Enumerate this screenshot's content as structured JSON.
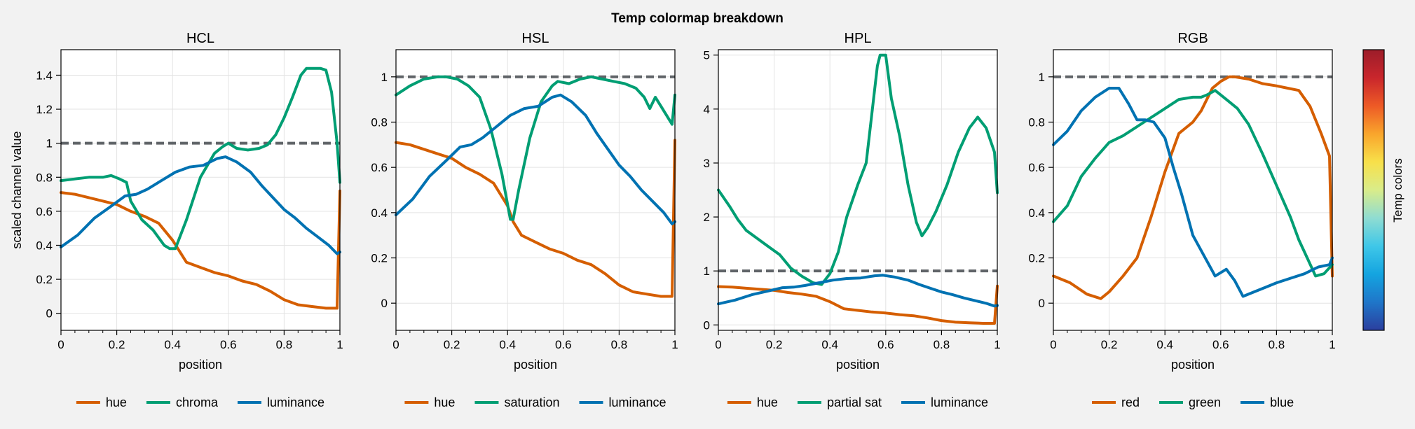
{
  "figure": {
    "suptitle": "Temp colormap breakdown",
    "colorbar_label": "Temp colors",
    "colorbar_stops": [
      "#2b3f9e",
      "#1f76c9",
      "#14a4e0",
      "#3fc7e8",
      "#8fdcd2",
      "#d9ec8a",
      "#f8e04a",
      "#f9a52c",
      "#ed5a26",
      "#c9262c",
      "#9c1d2a"
    ]
  },
  "colors": {
    "hue": "#d55e00",
    "chroma": "#009e73",
    "luminance": "#0072b2",
    "reference": "#606468",
    "background": "#f2f2f2",
    "axes_face": "#ffffff",
    "grid": "#e3e3e3"
  },
  "chart_data": [
    {
      "type": "line",
      "title": "HCL",
      "xlabel": "position",
      "ylabel": "scaled channel value",
      "xlim": [
        0,
        1
      ],
      "ylim": [
        -0.1,
        1.55
      ],
      "xticks": [
        0,
        0.2,
        0.4,
        0.6,
        0.8,
        1
      ],
      "xticklabels": [
        "0",
        "0.2",
        "0.4",
        "0.6",
        "0.8",
        "1"
      ],
      "yticks": [
        0,
        0.2,
        0.4,
        0.6,
        0.8,
        1,
        1.2,
        1.4
      ],
      "yticklabels": [
        "0",
        "0.2",
        "0.4",
        "0.6",
        "0.8",
        "1",
        "1.2",
        "1.4"
      ],
      "grid": true,
      "legend_position": "bottom",
      "reference_line": 1,
      "series": [
        {
          "name": "hue",
          "color": "#d55e00",
          "x": [
            0,
            0.05,
            0.1,
            0.15,
            0.2,
            0.25,
            0.3,
            0.35,
            0.4,
            0.45,
            0.5,
            0.55,
            0.6,
            0.65,
            0.7,
            0.75,
            0.8,
            0.85,
            0.9,
            0.95,
            0.99,
            1.0
          ],
          "y": [
            0.71,
            0.7,
            0.68,
            0.66,
            0.64,
            0.6,
            0.57,
            0.53,
            0.43,
            0.3,
            0.27,
            0.24,
            0.22,
            0.19,
            0.17,
            0.13,
            0.08,
            0.05,
            0.04,
            0.03,
            0.03,
            0.72
          ]
        },
        {
          "name": "chroma",
          "color": "#009e73",
          "x": [
            0,
            0.05,
            0.1,
            0.15,
            0.18,
            0.21,
            0.235,
            0.25,
            0.29,
            0.33,
            0.37,
            0.39,
            0.41,
            0.45,
            0.5,
            0.55,
            0.58,
            0.6,
            0.63,
            0.67,
            0.71,
            0.74,
            0.77,
            0.8,
            0.83,
            0.86,
            0.88,
            0.9,
            0.93,
            0.95,
            0.97,
            0.99,
            1.0
          ],
          "y": [
            0.78,
            0.79,
            0.8,
            0.8,
            0.81,
            0.79,
            0.77,
            0.66,
            0.55,
            0.49,
            0.4,
            0.38,
            0.38,
            0.55,
            0.8,
            0.94,
            0.98,
            1.0,
            0.97,
            0.96,
            0.97,
            0.99,
            1.05,
            1.15,
            1.27,
            1.4,
            1.44,
            1.44,
            1.44,
            1.43,
            1.3,
            1.0,
            0.77
          ]
        },
        {
          "name": "luminance",
          "color": "#0072b2",
          "x": [
            0,
            0.06,
            0.12,
            0.18,
            0.23,
            0.27,
            0.31,
            0.36,
            0.41,
            0.46,
            0.51,
            0.56,
            0.59,
            0.63,
            0.68,
            0.72,
            0.76,
            0.8,
            0.84,
            0.88,
            0.92,
            0.96,
            0.99,
            1.0
          ],
          "y": [
            0.39,
            0.46,
            0.56,
            0.63,
            0.69,
            0.7,
            0.73,
            0.78,
            0.83,
            0.86,
            0.87,
            0.91,
            0.92,
            0.89,
            0.83,
            0.75,
            0.68,
            0.61,
            0.56,
            0.5,
            0.45,
            0.4,
            0.35,
            0.36
          ]
        }
      ]
    },
    {
      "type": "line",
      "title": "HSL",
      "xlabel": "position",
      "ylabel": "",
      "xlim": [
        0,
        1
      ],
      "ylim": [
        -0.12,
        1.12
      ],
      "xticks": [
        0,
        0.2,
        0.4,
        0.6,
        0.8,
        1
      ],
      "xticklabels": [
        "0",
        "0.2",
        "0.4",
        "0.6",
        "0.8",
        "1"
      ],
      "yticks": [
        0,
        0.2,
        0.4,
        0.6,
        0.8,
        1
      ],
      "yticklabels": [
        "0",
        "0.2",
        "0.4",
        "0.6",
        "0.8",
        "1"
      ],
      "grid": true,
      "legend_position": "bottom",
      "reference_line": 1,
      "series": [
        {
          "name": "hue",
          "color": "#d55e00",
          "x": [
            0,
            0.05,
            0.1,
            0.15,
            0.2,
            0.25,
            0.3,
            0.35,
            0.4,
            0.42,
            0.45,
            0.5,
            0.55,
            0.6,
            0.65,
            0.7,
            0.75,
            0.8,
            0.85,
            0.9,
            0.95,
            0.99,
            1.0
          ],
          "y": [
            0.71,
            0.7,
            0.68,
            0.66,
            0.64,
            0.6,
            0.57,
            0.53,
            0.43,
            0.36,
            0.3,
            0.27,
            0.24,
            0.22,
            0.19,
            0.17,
            0.13,
            0.08,
            0.05,
            0.04,
            0.03,
            0.03,
            0.72
          ]
        },
        {
          "name": "saturation",
          "color": "#009e73",
          "x": [
            0,
            0.05,
            0.1,
            0.15,
            0.18,
            0.22,
            0.26,
            0.3,
            0.34,
            0.38,
            0.41,
            0.42,
            0.44,
            0.48,
            0.52,
            0.56,
            0.58,
            0.62,
            0.66,
            0.7,
            0.74,
            0.78,
            0.82,
            0.86,
            0.89,
            0.91,
            0.93,
            0.95,
            0.97,
            0.99,
            1.0
          ],
          "y": [
            0.92,
            0.96,
            0.99,
            1.0,
            1.0,
            0.99,
            0.96,
            0.91,
            0.77,
            0.57,
            0.37,
            0.37,
            0.5,
            0.73,
            0.89,
            0.96,
            0.98,
            0.97,
            0.99,
            1.0,
            0.99,
            0.98,
            0.97,
            0.95,
            0.91,
            0.86,
            0.91,
            0.87,
            0.83,
            0.79,
            0.92
          ]
        },
        {
          "name": "luminance",
          "color": "#0072b2",
          "x": [
            0,
            0.06,
            0.12,
            0.18,
            0.23,
            0.27,
            0.31,
            0.36,
            0.41,
            0.46,
            0.51,
            0.56,
            0.59,
            0.63,
            0.68,
            0.72,
            0.76,
            0.8,
            0.84,
            0.88,
            0.92,
            0.96,
            0.99,
            1.0
          ],
          "y": [
            0.39,
            0.46,
            0.56,
            0.63,
            0.69,
            0.7,
            0.73,
            0.78,
            0.83,
            0.86,
            0.87,
            0.91,
            0.92,
            0.89,
            0.83,
            0.75,
            0.68,
            0.61,
            0.56,
            0.5,
            0.45,
            0.4,
            0.35,
            0.36
          ]
        }
      ]
    },
    {
      "type": "line",
      "title": "HPL",
      "xlabel": "position",
      "ylabel": "",
      "xlim": [
        0,
        1
      ],
      "ylim": [
        -0.1,
        5.1
      ],
      "xticks": [
        0,
        0.2,
        0.4,
        0.6,
        0.8,
        1
      ],
      "xticklabels": [
        "0",
        "0.2",
        "0.4",
        "0.6",
        "0.8",
        "1"
      ],
      "yticks": [
        0,
        1,
        2,
        3,
        4,
        5
      ],
      "yticklabels": [
        "0",
        "1",
        "2",
        "3",
        "4",
        "5"
      ],
      "grid": true,
      "legend_position": "bottom",
      "reference_line": 1,
      "series": [
        {
          "name": "hue",
          "color": "#d55e00",
          "x": [
            0,
            0.05,
            0.1,
            0.15,
            0.2,
            0.25,
            0.3,
            0.35,
            0.4,
            0.45,
            0.5,
            0.55,
            0.6,
            0.65,
            0.7,
            0.75,
            0.8,
            0.85,
            0.9,
            0.95,
            0.99,
            1.0
          ],
          "y": [
            0.71,
            0.7,
            0.68,
            0.66,
            0.64,
            0.6,
            0.57,
            0.53,
            0.43,
            0.3,
            0.27,
            0.24,
            0.22,
            0.19,
            0.17,
            0.13,
            0.08,
            0.05,
            0.04,
            0.03,
            0.03,
            0.72
          ]
        },
        {
          "name": "partial sat",
          "color": "#009e73",
          "x": [
            0,
            0.04,
            0.07,
            0.1,
            0.14,
            0.18,
            0.22,
            0.26,
            0.3,
            0.34,
            0.37,
            0.4,
            0.43,
            0.46,
            0.5,
            0.53,
            0.55,
            0.57,
            0.58,
            0.6,
            0.62,
            0.65,
            0.68,
            0.71,
            0.73,
            0.75,
            0.78,
            0.82,
            0.86,
            0.9,
            0.93,
            0.96,
            0.99,
            1.0
          ],
          "y": [
            2.5,
            2.2,
            1.95,
            1.75,
            1.6,
            1.45,
            1.3,
            1.05,
            0.9,
            0.78,
            0.75,
            0.95,
            1.35,
            2.0,
            2.6,
            3.0,
            3.9,
            4.8,
            5.0,
            5.0,
            4.2,
            3.5,
            2.6,
            1.9,
            1.65,
            1.8,
            2.1,
            2.6,
            3.2,
            3.65,
            3.85,
            3.65,
            3.2,
            2.45
          ]
        },
        {
          "name": "luminance",
          "color": "#0072b2",
          "x": [
            0,
            0.06,
            0.12,
            0.18,
            0.23,
            0.27,
            0.31,
            0.36,
            0.41,
            0.46,
            0.51,
            0.56,
            0.59,
            0.63,
            0.68,
            0.72,
            0.76,
            0.8,
            0.84,
            0.88,
            0.92,
            0.96,
            0.99,
            1.0
          ],
          "y": [
            0.39,
            0.46,
            0.56,
            0.63,
            0.69,
            0.7,
            0.73,
            0.78,
            0.83,
            0.86,
            0.87,
            0.91,
            0.92,
            0.89,
            0.83,
            0.75,
            0.68,
            0.61,
            0.56,
            0.5,
            0.45,
            0.4,
            0.35,
            0.36
          ]
        }
      ]
    },
    {
      "type": "line",
      "title": "RGB",
      "xlabel": "position",
      "ylabel": "",
      "xlim": [
        0,
        1
      ],
      "ylim": [
        -0.12,
        1.12
      ],
      "xticks": [
        0,
        0.2,
        0.4,
        0.6,
        0.8,
        1
      ],
      "xticklabels": [
        "0",
        "0.2",
        "0.4",
        "0.6",
        "0.8",
        "1"
      ],
      "yticks": [
        0,
        0.2,
        0.4,
        0.6,
        0.8,
        1
      ],
      "yticklabels": [
        "0",
        "0.2",
        "0.4",
        "0.6",
        "0.8",
        "1"
      ],
      "grid": true,
      "legend_position": "bottom",
      "reference_line": 1,
      "series": [
        {
          "name": "red",
          "color": "#d55e00",
          "x": [
            0,
            0.06,
            0.12,
            0.17,
            0.2,
            0.25,
            0.3,
            0.35,
            0.4,
            0.45,
            0.5,
            0.53,
            0.57,
            0.6,
            0.63,
            0.65,
            0.7,
            0.75,
            0.8,
            0.84,
            0.88,
            0.92,
            0.96,
            0.99,
            1.0
          ],
          "y": [
            0.12,
            0.09,
            0.04,
            0.02,
            0.05,
            0.12,
            0.2,
            0.38,
            0.58,
            0.75,
            0.8,
            0.85,
            0.95,
            0.98,
            1.0,
            1.0,
            0.99,
            0.97,
            0.96,
            0.95,
            0.94,
            0.87,
            0.75,
            0.65,
            0.12
          ]
        },
        {
          "name": "green",
          "color": "#009e73",
          "x": [
            0,
            0.05,
            0.1,
            0.15,
            0.2,
            0.25,
            0.3,
            0.35,
            0.4,
            0.45,
            0.5,
            0.53,
            0.55,
            0.58,
            0.62,
            0.66,
            0.7,
            0.75,
            0.8,
            0.85,
            0.88,
            0.91,
            0.94,
            0.97,
            1.0
          ],
          "y": [
            0.36,
            0.43,
            0.56,
            0.64,
            0.71,
            0.74,
            0.78,
            0.82,
            0.86,
            0.9,
            0.91,
            0.91,
            0.92,
            0.94,
            0.9,
            0.86,
            0.79,
            0.66,
            0.52,
            0.38,
            0.28,
            0.2,
            0.12,
            0.13,
            0.17
          ]
        },
        {
          "name": "blue",
          "color": "#0072b2",
          "x": [
            0,
            0.05,
            0.1,
            0.15,
            0.2,
            0.235,
            0.27,
            0.3,
            0.33,
            0.36,
            0.4,
            0.43,
            0.46,
            0.5,
            0.54,
            0.58,
            0.62,
            0.65,
            0.68,
            0.72,
            0.76,
            0.8,
            0.85,
            0.9,
            0.95,
            0.99,
            1.0
          ],
          "y": [
            0.7,
            0.76,
            0.85,
            0.91,
            0.95,
            0.95,
            0.88,
            0.81,
            0.81,
            0.8,
            0.73,
            0.6,
            0.48,
            0.3,
            0.21,
            0.12,
            0.15,
            0.1,
            0.03,
            0.05,
            0.07,
            0.09,
            0.11,
            0.13,
            0.16,
            0.17,
            0.2
          ]
        }
      ]
    }
  ]
}
